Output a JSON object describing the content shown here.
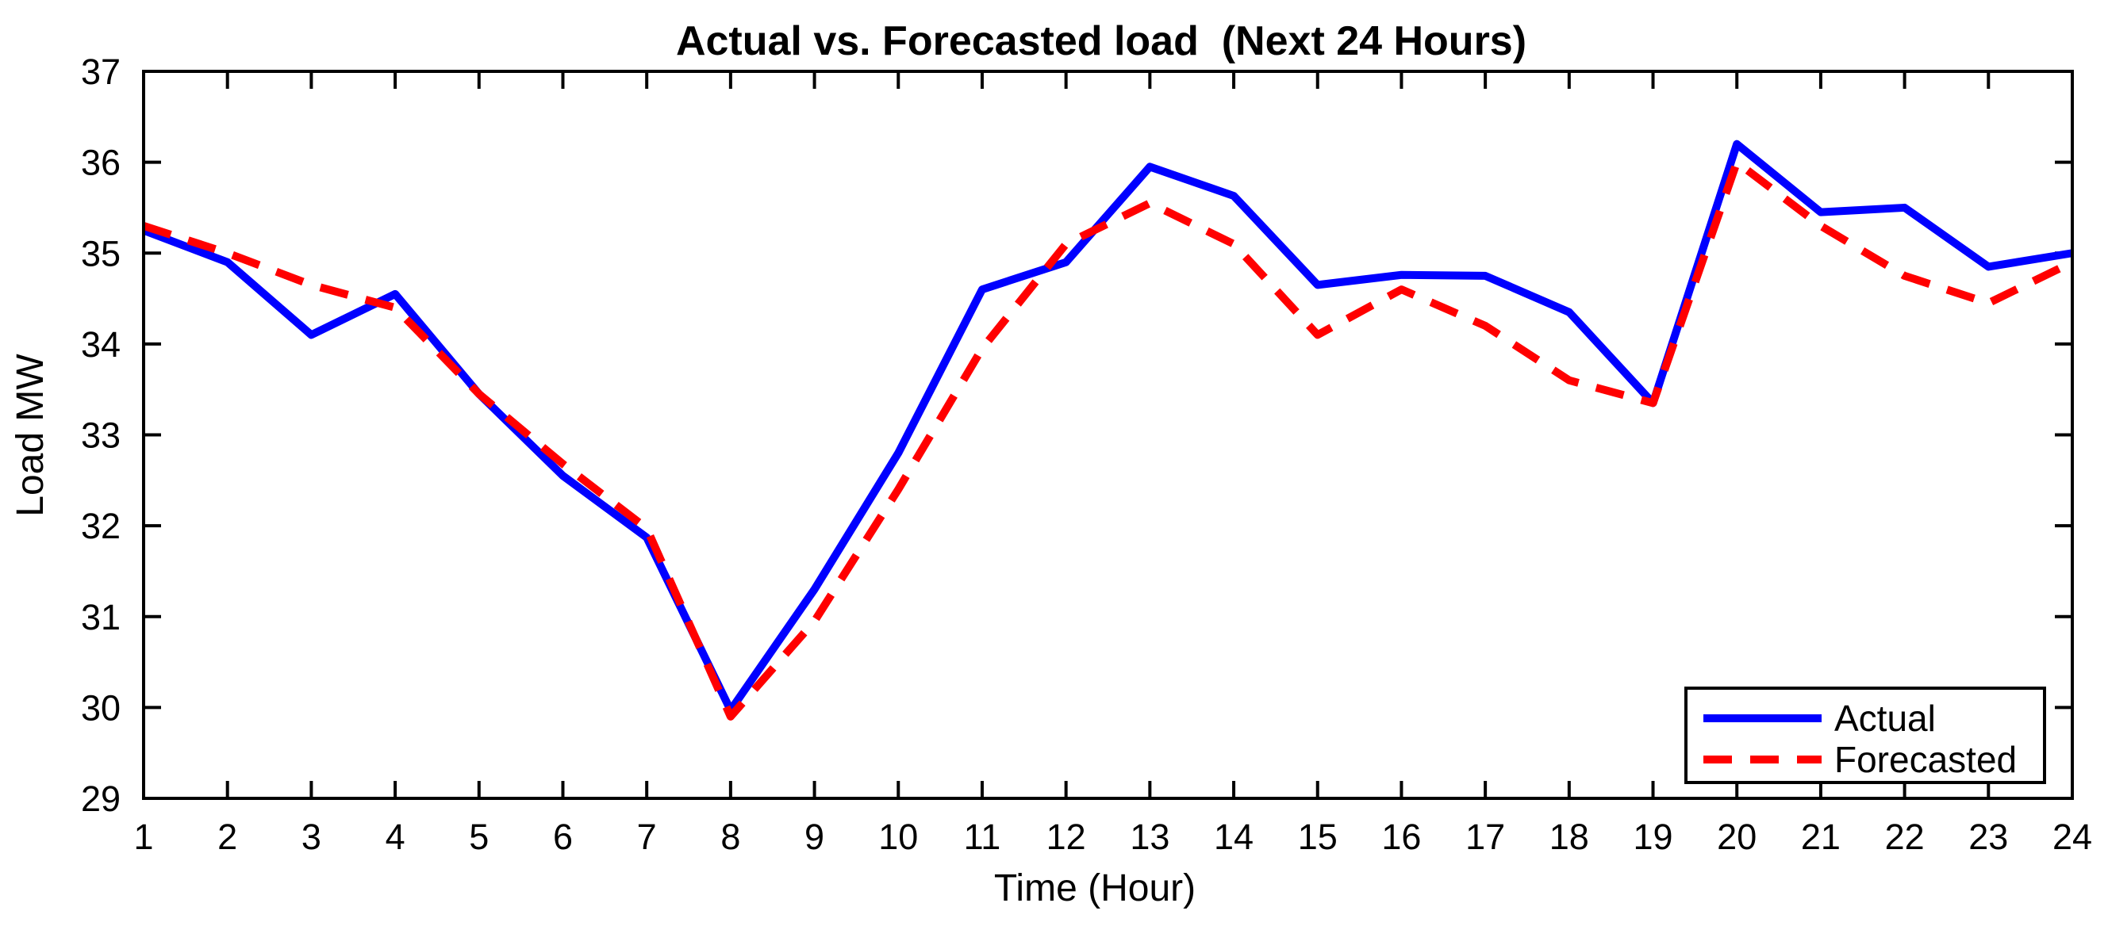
{
  "chart_data": {
    "type": "line",
    "title": "Actual vs. Forecasted load  (Next 24 Hours)",
    "xlabel": "Time (Hour)",
    "ylabel": "Load MW",
    "x": [
      1,
      2,
      3,
      4,
      5,
      6,
      7,
      8,
      9,
      10,
      11,
      12,
      13,
      14,
      15,
      16,
      17,
      18,
      19,
      20,
      21,
      22,
      23,
      24
    ],
    "series": [
      {
        "name": "Actual",
        "color": "#0000ff",
        "style": "solid",
        "values": [
          35.25,
          34.9,
          34.1,
          34.55,
          33.45,
          32.55,
          31.87,
          29.97,
          31.3,
          32.8,
          34.6,
          34.9,
          35.95,
          35.63,
          34.65,
          34.76,
          34.75,
          34.35,
          33.35,
          36.2,
          35.45,
          35.5,
          34.85,
          35.0
        ]
      },
      {
        "name": "Forecasted",
        "color": "#ff0000",
        "style": "dashed",
        "values": [
          35.3,
          35.0,
          34.65,
          34.4,
          33.45,
          32.68,
          31.97,
          29.9,
          30.95,
          32.4,
          33.95,
          35.1,
          35.55,
          35.1,
          34.1,
          34.6,
          34.2,
          33.6,
          33.35,
          36.0,
          35.3,
          34.75,
          34.45,
          34.9
        ]
      }
    ],
    "xlim": [
      1,
      24
    ],
    "ylim": [
      29,
      37
    ],
    "x_ticks": [
      1,
      2,
      3,
      4,
      5,
      6,
      7,
      8,
      9,
      10,
      11,
      12,
      13,
      14,
      15,
      16,
      17,
      18,
      19,
      20,
      21,
      22,
      23,
      24
    ],
    "y_ticks": [
      29,
      30,
      31,
      32,
      33,
      34,
      35,
      36,
      37
    ],
    "grid": false,
    "legend_position": "lower right",
    "axis_color": "#000000",
    "background_color": "#ffffff"
  }
}
